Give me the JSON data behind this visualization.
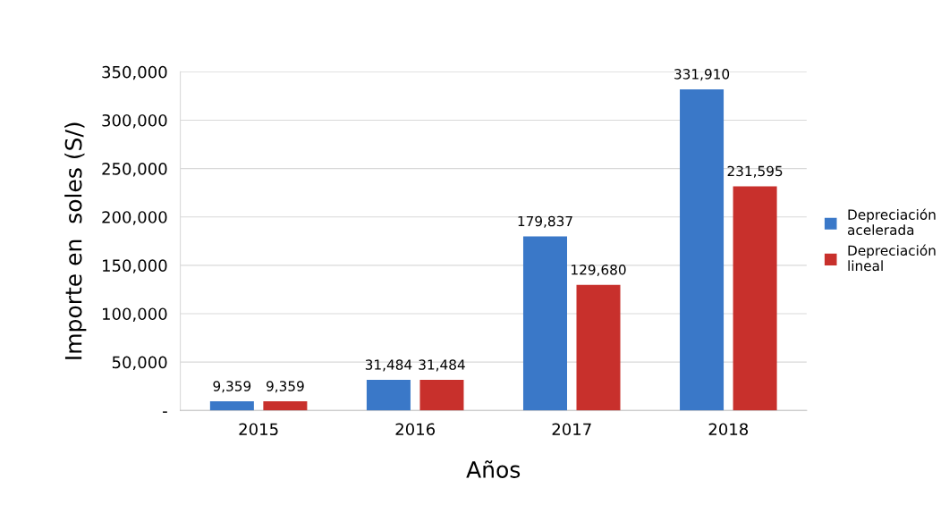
{
  "chart_data": {
    "type": "bar",
    "xlabel": "Años",
    "ylabel": "Importe en  soles (S/)",
    "categories": [
      "2015",
      "2016",
      "2017",
      "2018"
    ],
    "series": [
      {
        "name": "Depreciación acelerada",
        "color": "#3a78c8",
        "values": [
          9359,
          31484,
          179837,
          331910
        ],
        "value_labels": [
          "9,359",
          "31,484",
          "179,837",
          "331,910"
        ]
      },
      {
        "name": "Depreciación lineal",
        "color": "#c8302c",
        "values": [
          9359,
          31484,
          129680,
          231595
        ],
        "value_labels": [
          "9,359",
          "31,484",
          "129,680",
          "231,595"
        ]
      }
    ],
    "ylim": [
      0,
      350000
    ],
    "yticks": [
      {
        "value": 0,
        "label": "-"
      },
      {
        "value": 50000,
        "label": "50,000"
      },
      {
        "value": 100000,
        "label": "100,000"
      },
      {
        "value": 150000,
        "label": "150,000"
      },
      {
        "value": 200000,
        "label": "200,000"
      },
      {
        "value": 250000,
        "label": "250,000"
      },
      {
        "value": 300000,
        "label": "300,000"
      },
      {
        "value": 350000,
        "label": "350,000"
      }
    ],
    "grid": "y",
    "legend": "right"
  }
}
